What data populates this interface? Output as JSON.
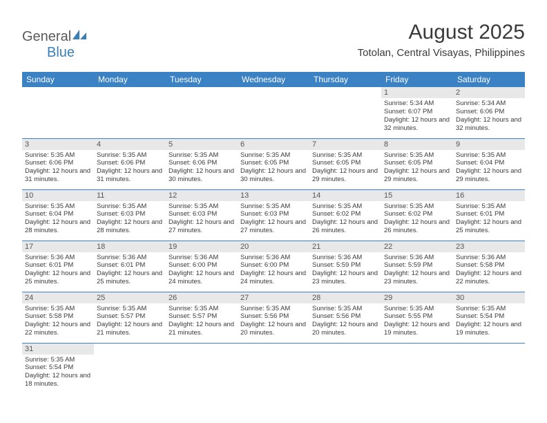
{
  "logo": {
    "text1": "General",
    "text2": "Blue"
  },
  "title": "August 2025",
  "location": "Totolan, Central Visayas, Philippines",
  "colors": {
    "header_bg": "#3b82c4",
    "header_text": "#ffffff",
    "daynum_bg": "#e8e8e8",
    "text": "#3a3a3a",
    "border": "#3b82c4"
  },
  "weekdays": [
    "Sunday",
    "Monday",
    "Tuesday",
    "Wednesday",
    "Thursday",
    "Friday",
    "Saturday"
  ],
  "weeks": [
    [
      null,
      null,
      null,
      null,
      null,
      {
        "n": "1",
        "sr": "5:34 AM",
        "ss": "6:07 PM",
        "dl": "12 hours and 32 minutes."
      },
      {
        "n": "2",
        "sr": "5:34 AM",
        "ss": "6:06 PM",
        "dl": "12 hours and 32 minutes."
      }
    ],
    [
      {
        "n": "3",
        "sr": "5:35 AM",
        "ss": "6:06 PM",
        "dl": "12 hours and 31 minutes."
      },
      {
        "n": "4",
        "sr": "5:35 AM",
        "ss": "6:06 PM",
        "dl": "12 hours and 31 minutes."
      },
      {
        "n": "5",
        "sr": "5:35 AM",
        "ss": "6:06 PM",
        "dl": "12 hours and 30 minutes."
      },
      {
        "n": "6",
        "sr": "5:35 AM",
        "ss": "6:05 PM",
        "dl": "12 hours and 30 minutes."
      },
      {
        "n": "7",
        "sr": "5:35 AM",
        "ss": "6:05 PM",
        "dl": "12 hours and 29 minutes."
      },
      {
        "n": "8",
        "sr": "5:35 AM",
        "ss": "6:05 PM",
        "dl": "12 hours and 29 minutes."
      },
      {
        "n": "9",
        "sr": "5:35 AM",
        "ss": "6:04 PM",
        "dl": "12 hours and 29 minutes."
      }
    ],
    [
      {
        "n": "10",
        "sr": "5:35 AM",
        "ss": "6:04 PM",
        "dl": "12 hours and 28 minutes."
      },
      {
        "n": "11",
        "sr": "5:35 AM",
        "ss": "6:03 PM",
        "dl": "12 hours and 28 minutes."
      },
      {
        "n": "12",
        "sr": "5:35 AM",
        "ss": "6:03 PM",
        "dl": "12 hours and 27 minutes."
      },
      {
        "n": "13",
        "sr": "5:35 AM",
        "ss": "6:03 PM",
        "dl": "12 hours and 27 minutes."
      },
      {
        "n": "14",
        "sr": "5:35 AM",
        "ss": "6:02 PM",
        "dl": "12 hours and 26 minutes."
      },
      {
        "n": "15",
        "sr": "5:35 AM",
        "ss": "6:02 PM",
        "dl": "12 hours and 26 minutes."
      },
      {
        "n": "16",
        "sr": "5:35 AM",
        "ss": "6:01 PM",
        "dl": "12 hours and 25 minutes."
      }
    ],
    [
      {
        "n": "17",
        "sr": "5:36 AM",
        "ss": "6:01 PM",
        "dl": "12 hours and 25 minutes."
      },
      {
        "n": "18",
        "sr": "5:36 AM",
        "ss": "6:01 PM",
        "dl": "12 hours and 25 minutes."
      },
      {
        "n": "19",
        "sr": "5:36 AM",
        "ss": "6:00 PM",
        "dl": "12 hours and 24 minutes."
      },
      {
        "n": "20",
        "sr": "5:36 AM",
        "ss": "6:00 PM",
        "dl": "12 hours and 24 minutes."
      },
      {
        "n": "21",
        "sr": "5:36 AM",
        "ss": "5:59 PM",
        "dl": "12 hours and 23 minutes."
      },
      {
        "n": "22",
        "sr": "5:36 AM",
        "ss": "5:59 PM",
        "dl": "12 hours and 23 minutes."
      },
      {
        "n": "23",
        "sr": "5:36 AM",
        "ss": "5:58 PM",
        "dl": "12 hours and 22 minutes."
      }
    ],
    [
      {
        "n": "24",
        "sr": "5:35 AM",
        "ss": "5:58 PM",
        "dl": "12 hours and 22 minutes."
      },
      {
        "n": "25",
        "sr": "5:35 AM",
        "ss": "5:57 PM",
        "dl": "12 hours and 21 minutes."
      },
      {
        "n": "26",
        "sr": "5:35 AM",
        "ss": "5:57 PM",
        "dl": "12 hours and 21 minutes."
      },
      {
        "n": "27",
        "sr": "5:35 AM",
        "ss": "5:56 PM",
        "dl": "12 hours and 20 minutes."
      },
      {
        "n": "28",
        "sr": "5:35 AM",
        "ss": "5:56 PM",
        "dl": "12 hours and 20 minutes."
      },
      {
        "n": "29",
        "sr": "5:35 AM",
        "ss": "5:55 PM",
        "dl": "12 hours and 19 minutes."
      },
      {
        "n": "30",
        "sr": "5:35 AM",
        "ss": "5:54 PM",
        "dl": "12 hours and 19 minutes."
      }
    ],
    [
      {
        "n": "31",
        "sr": "5:35 AM",
        "ss": "5:54 PM",
        "dl": "12 hours and 18 minutes."
      },
      null,
      null,
      null,
      null,
      null,
      null
    ]
  ],
  "labels": {
    "sunrise": "Sunrise:",
    "sunset": "Sunset:",
    "daylight": "Daylight:"
  }
}
